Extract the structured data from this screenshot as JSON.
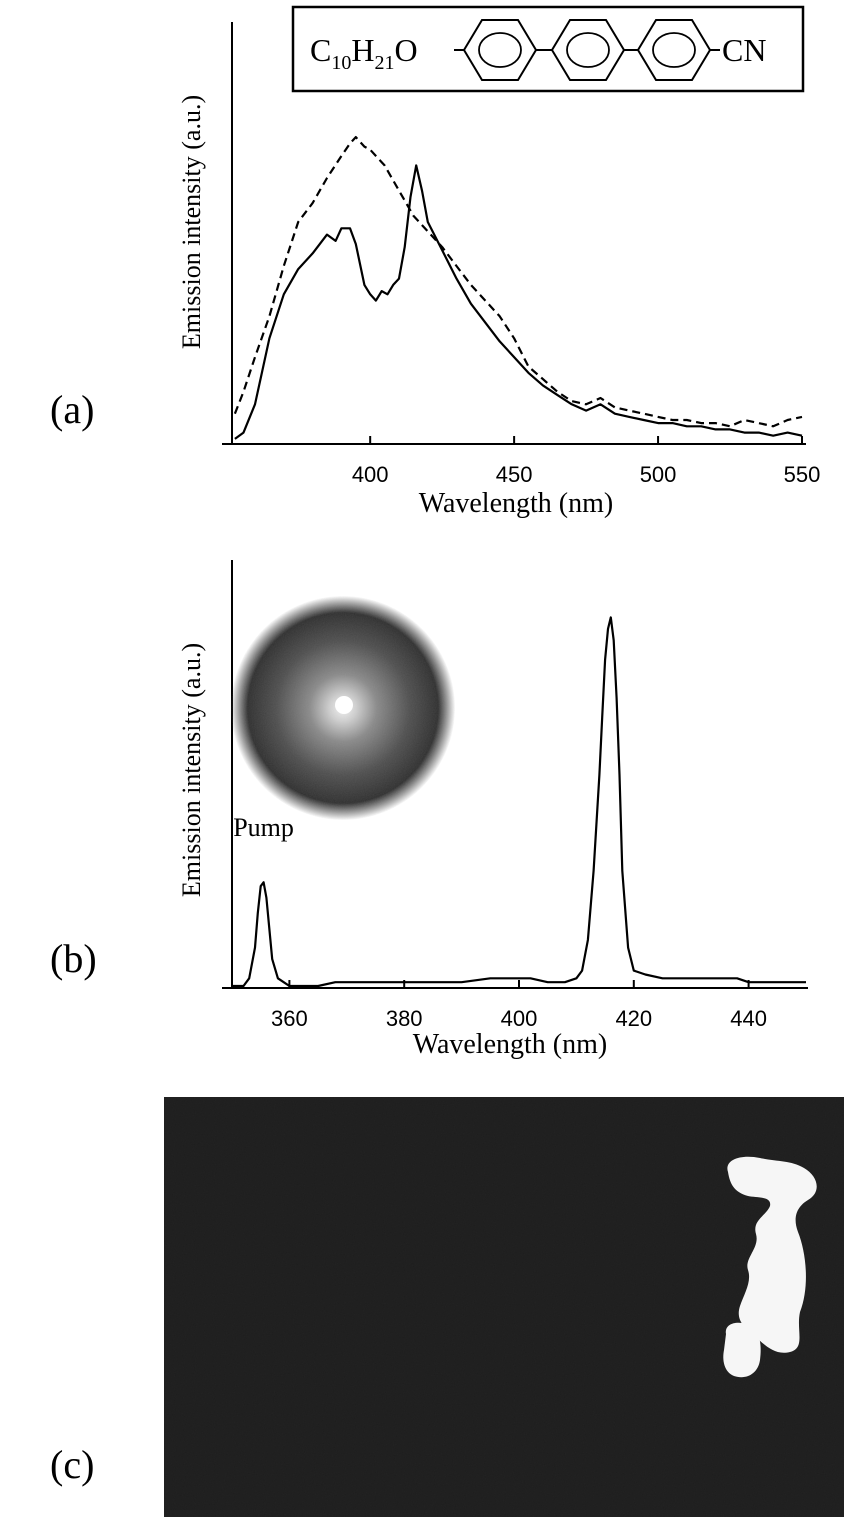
{
  "panels": {
    "a": {
      "label": "(a)"
    },
    "b": {
      "label": "(b)"
    },
    "c": {
      "label": "(c)"
    }
  },
  "molecule": {
    "prefix_c": "C",
    "prefix_c_sub": "10",
    "prefix_h": "H",
    "prefix_h_sub": "21",
    "prefix_o": "O",
    "suffix": "CN",
    "ring_count": 3
  },
  "chart_data": [
    {
      "panel": "a",
      "type": "line",
      "title": "",
      "xlabel": "Wavelength (nm)",
      "ylabel": "Emission intensity (a.u.)",
      "xlim": [
        352,
        550
      ],
      "ylim": [
        0,
        1.05
      ],
      "xticks": [
        400,
        450,
        500,
        550
      ],
      "grid": false,
      "series": [
        {
          "style": "solid",
          "x": [
            353,
            356,
            360,
            365,
            370,
            375,
            380,
            385,
            388,
            390,
            393,
            395,
            398,
            400,
            402,
            404,
            406,
            408,
            410,
            412,
            414,
            416,
            418,
            420,
            425,
            430,
            435,
            440,
            445,
            450,
            455,
            460,
            465,
            470,
            475,
            480,
            485,
            490,
            495,
            500,
            505,
            510,
            515,
            520,
            525,
            530,
            535,
            540,
            545,
            550
          ],
          "y": [
            0.01,
            0.03,
            0.12,
            0.33,
            0.47,
            0.55,
            0.6,
            0.66,
            0.64,
            0.68,
            0.68,
            0.63,
            0.5,
            0.47,
            0.45,
            0.48,
            0.47,
            0.5,
            0.52,
            0.62,
            0.78,
            0.88,
            0.8,
            0.7,
            0.61,
            0.52,
            0.44,
            0.38,
            0.32,
            0.27,
            0.22,
            0.18,
            0.15,
            0.12,
            0.1,
            0.12,
            0.09,
            0.08,
            0.07,
            0.06,
            0.06,
            0.05,
            0.05,
            0.04,
            0.04,
            0.03,
            0.03,
            0.02,
            0.03,
            0.02
          ]
        },
        {
          "style": "dashed",
          "x": [
            353,
            356,
            360,
            365,
            370,
            375,
            380,
            385,
            390,
            393,
            395,
            398,
            400,
            405,
            410,
            415,
            420,
            425,
            430,
            435,
            440,
            445,
            450,
            455,
            460,
            465,
            470,
            475,
            480,
            485,
            490,
            495,
            500,
            505,
            510,
            515,
            520,
            525,
            530,
            535,
            540,
            545,
            550
          ],
          "y": [
            0.09,
            0.16,
            0.27,
            0.4,
            0.56,
            0.7,
            0.76,
            0.84,
            0.91,
            0.95,
            0.97,
            0.94,
            0.93,
            0.88,
            0.8,
            0.72,
            0.67,
            0.62,
            0.56,
            0.5,
            0.45,
            0.4,
            0.33,
            0.24,
            0.2,
            0.16,
            0.13,
            0.12,
            0.14,
            0.11,
            0.1,
            0.09,
            0.08,
            0.07,
            0.07,
            0.06,
            0.06,
            0.05,
            0.07,
            0.06,
            0.05,
            0.07,
            0.08
          ]
        }
      ]
    },
    {
      "panel": "b",
      "type": "line",
      "title": "",
      "xlabel": "Wavelength (nm)",
      "ylabel": "Emission intensity (a.u.)",
      "xlim": [
        350,
        450
      ],
      "ylim": [
        0,
        1.0
      ],
      "xticks": [
        360,
        380,
        400,
        420,
        440
      ],
      "grid": false,
      "annotations": [
        {
          "text": "Pump",
          "x": 355.5
        }
      ],
      "series": [
        {
          "style": "solid",
          "x": [
            350,
            352,
            353,
            354,
            354.5,
            355,
            355.5,
            356,
            356.5,
            357,
            358,
            359,
            360,
            362,
            365,
            368,
            370,
            375,
            380,
            385,
            390,
            395,
            398,
            400,
            402,
            405,
            408,
            410,
            411,
            412,
            413,
            414,
            414.5,
            415,
            415.5,
            416,
            416.5,
            417,
            417.5,
            418,
            419,
            420,
            422,
            425,
            430,
            435,
            438,
            440,
            445,
            450
          ],
          "y": [
            0.0,
            0.0,
            0.02,
            0.1,
            0.19,
            0.26,
            0.27,
            0.23,
            0.15,
            0.07,
            0.02,
            0.01,
            0.0,
            0.0,
            0.0,
            0.01,
            0.01,
            0.01,
            0.01,
            0.01,
            0.01,
            0.02,
            0.02,
            0.02,
            0.02,
            0.01,
            0.01,
            0.02,
            0.04,
            0.12,
            0.3,
            0.55,
            0.7,
            0.85,
            0.93,
            0.96,
            0.9,
            0.75,
            0.55,
            0.3,
            0.1,
            0.04,
            0.03,
            0.02,
            0.02,
            0.02,
            0.02,
            0.01,
            0.01,
            0.01
          ]
        }
      ]
    }
  ]
}
